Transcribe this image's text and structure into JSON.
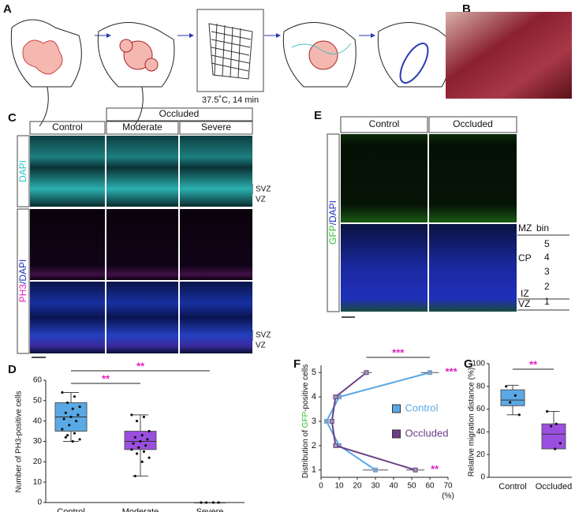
{
  "panel_labels": {
    "a": "A",
    "b": "B",
    "c": "C",
    "d": "D",
    "e": "E",
    "f": "F",
    "g": "G"
  },
  "panel_a": {
    "caption": "37.5˚C, 14 min"
  },
  "panel_c": {
    "group_header": "Occluded",
    "columns": [
      "Control",
      "Moderate",
      "Severe"
    ],
    "row1_label": "DAPI",
    "row2_label": [
      "PH3",
      "/DAPI"
    ],
    "zones": [
      "SVZ",
      "VZ",
      "SVZ",
      "VZ"
    ]
  },
  "panel_e": {
    "columns": [
      "Control",
      "Occluded"
    ],
    "row_label": [
      "GFP",
      "/DAPI"
    ],
    "zones": [
      "MZ",
      "CP",
      "IZ",
      "VZ"
    ],
    "bin_header": "bin",
    "bins": [
      5,
      4,
      3,
      2,
      1
    ]
  },
  "chart_data": [
    {
      "type": "box",
      "y_label": "Number of PH3-positive cells",
      "categories": [
        "Control",
        "Moderate",
        "Severe"
      ],
      "colors": [
        "#5aa9e6",
        "#9b4fe0",
        "#9b4fe0"
      ],
      "boxes": [
        {
          "min": 30,
          "q1": 35,
          "median": 42,
          "q3": 49,
          "max": 54,
          "points": [
            54,
            52,
            49,
            47,
            46,
            44,
            43,
            42,
            41,
            40,
            38,
            36,
            34,
            33,
            31,
            30,
            32
          ]
        },
        {
          "min": 13,
          "q1": 26,
          "median": 30,
          "q3": 35,
          "max": 43,
          "points": [
            43,
            42,
            40,
            35,
            33,
            32,
            31,
            30,
            29,
            28,
            27,
            26,
            25,
            24,
            22,
            20,
            13
          ]
        },
        {
          "min": 0,
          "q1": 0,
          "median": 0,
          "q3": 0,
          "max": 0,
          "points": [
            0,
            0,
            0,
            0
          ]
        }
      ],
      "ylim": [
        0,
        60
      ],
      "yticks": [
        0,
        10,
        20,
        30,
        40,
        50,
        60
      ],
      "annotations": [
        {
          "label": "**",
          "from": "Control",
          "to": "Severe",
          "color": "#e020c0"
        },
        {
          "label": "**",
          "from": "Control",
          "to": "Moderate",
          "color": "#e020c0"
        }
      ]
    },
    {
      "type": "line",
      "orientation": "horizontal",
      "y_label": [
        "Distribution of ",
        "GFP",
        "-positive cells"
      ],
      "x_unit": "(%)",
      "bins": [
        5,
        4,
        3,
        2,
        1
      ],
      "series": [
        {
          "name": "Control",
          "color": "#5aa9e6",
          "values": [
            60,
            10,
            3,
            10,
            30
          ],
          "errors": [
            5,
            0,
            0,
            0,
            7
          ]
        },
        {
          "name": "Occluded",
          "color": "#6b3f87",
          "values": [
            25,
            8,
            6,
            8,
            52
          ],
          "errors": [
            3,
            0,
            0,
            0,
            5
          ]
        }
      ],
      "xlim": [
        0,
        70
      ],
      "xticks": [
        0,
        10,
        20,
        30,
        40,
        50,
        60,
        70
      ],
      "ylim": [
        0.7,
        5.3
      ],
      "yticks": [
        1,
        2,
        3,
        4,
        5
      ],
      "legend": "center",
      "annotations": [
        {
          "label": "***",
          "bin": 5,
          "kind": "bracket",
          "color": "#e020c0"
        },
        {
          "label": "***",
          "bin": 5,
          "kind": "side",
          "color": "#e020c0"
        },
        {
          "label": "**",
          "bin": 1,
          "kind": "side",
          "color": "#e020c0"
        }
      ]
    },
    {
      "type": "box",
      "y_label": "Relative migration distance (%)",
      "categories": [
        "Control",
        "Occluded"
      ],
      "colors": [
        "#5aa9e6",
        "#9b4fe0"
      ],
      "boxes": [
        {
          "min": 55,
          "q1": 63,
          "median": 68,
          "q3": 77,
          "max": 81,
          "points": [
            80,
            72,
            66,
            55
          ]
        },
        {
          "min": 25,
          "q1": 25,
          "median": 38,
          "q3": 47,
          "max": 58,
          "points": [
            58,
            47,
            45,
            30,
            25
          ]
        }
      ],
      "ylim": [
        0,
        100
      ],
      "yticks": [
        0,
        20,
        40,
        60,
        80,
        100
      ],
      "annotations": [
        {
          "label": "**",
          "from": "Control",
          "to": "Occluded",
          "color": "#e020c0"
        }
      ]
    }
  ]
}
